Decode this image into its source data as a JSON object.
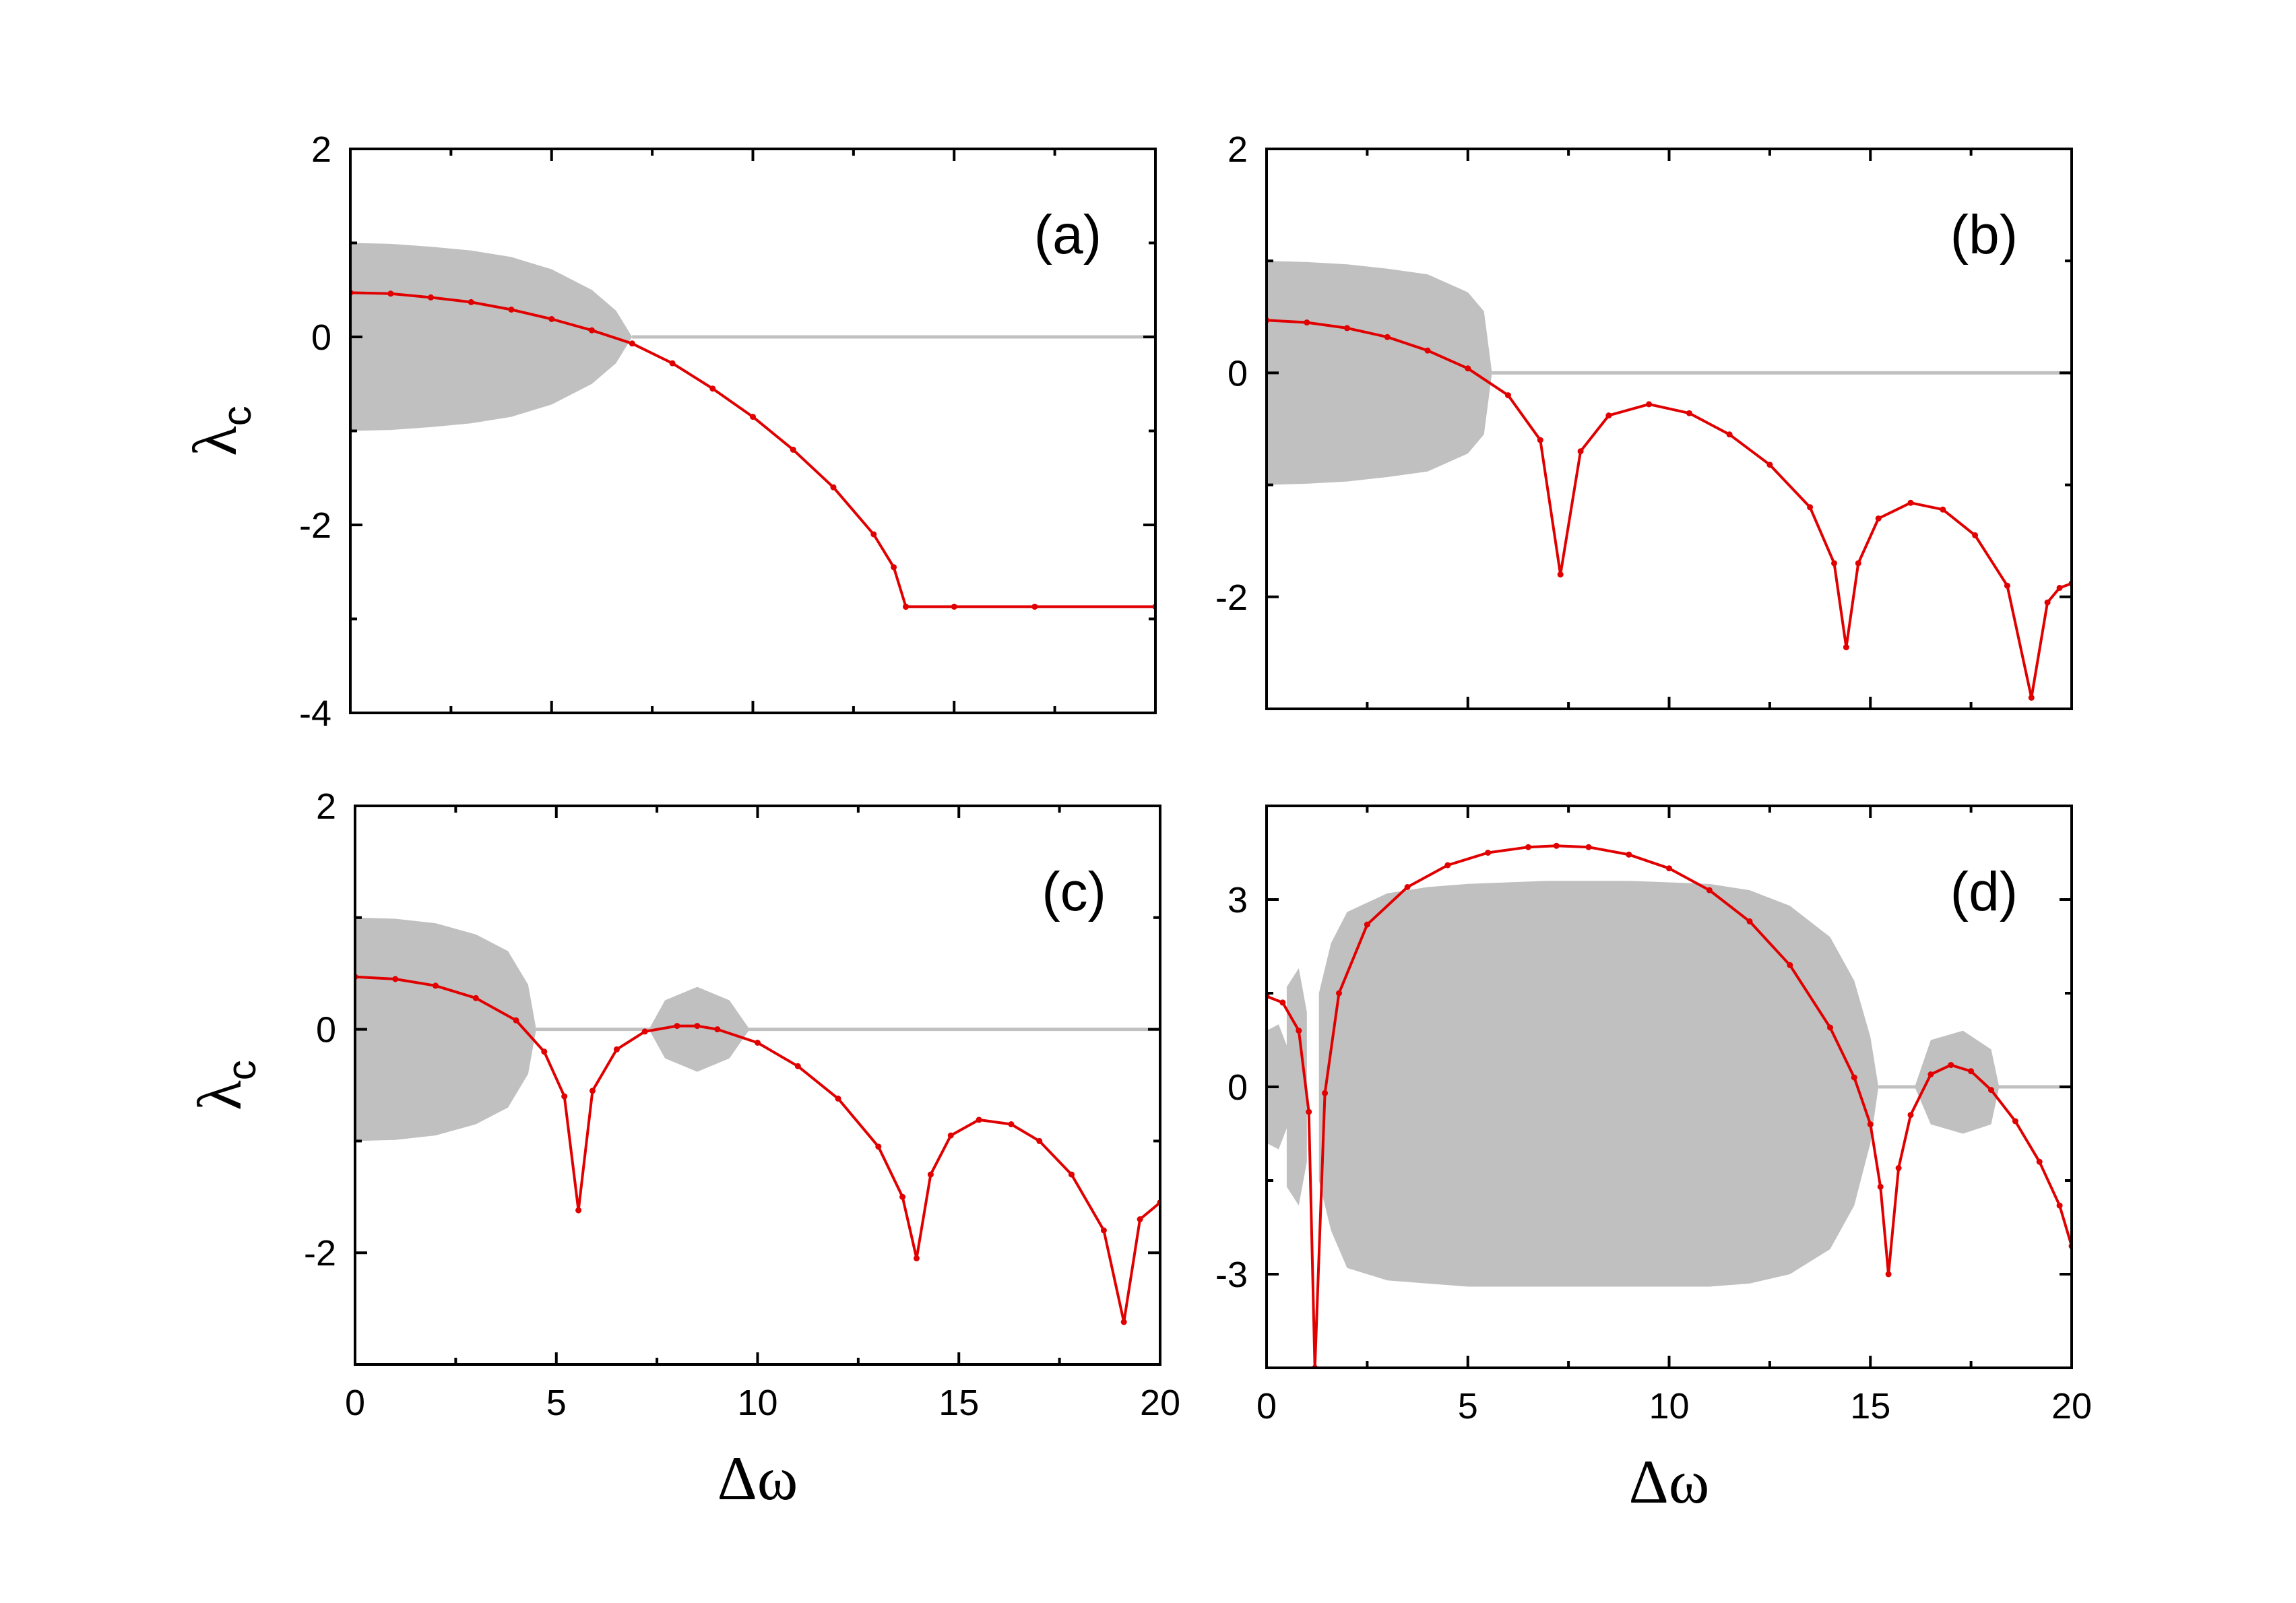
{
  "colors": {
    "curve": "#e00000",
    "band": "#c0c0c0",
    "baseline": "#c0c0c0",
    "axis": "#000000"
  },
  "chart_data": [
    {
      "type": "line",
      "panel": "(a)",
      "x_range": [
        0,
        20
      ],
      "ylim": [
        -4,
        2
      ],
      "xticks": [
        0,
        5,
        10,
        15,
        20
      ],
      "yticks": [
        2,
        0,
        -2,
        -4
      ],
      "ytick_labels": [
        "2",
        "0",
        "-2",
        "-4"
      ],
      "show_xtick_labels": false,
      "ylabel": "λ",
      "ylabel_sub": "c",
      "xlabel": "",
      "label_position": "top-right",
      "band_series": [
        {
          "x": [
            0,
            1,
            2,
            3,
            4,
            5,
            6,
            6.6,
            7.0
          ],
          "upper": [
            1.0,
            0.99,
            0.96,
            0.92,
            0.85,
            0.72,
            0.5,
            0.28,
            0.0
          ],
          "lower": [
            -1.0,
            -0.99,
            -0.96,
            -0.92,
            -0.85,
            -0.72,
            -0.5,
            -0.28,
            0.0
          ]
        }
      ],
      "baseline": {
        "y": 0,
        "x_start": 7.0,
        "x_end": 20
      },
      "series": [
        {
          "name": "λc",
          "x": [
            0,
            1,
            2,
            3,
            4,
            5,
            6,
            7,
            8,
            9,
            10,
            11,
            12,
            13,
            13.5,
            13.8,
            13.8,
            15,
            17,
            20
          ],
          "y": [
            0.47,
            0.46,
            0.42,
            0.37,
            0.29,
            0.19,
            0.07,
            -0.07,
            -0.28,
            -0.55,
            -0.85,
            -1.2,
            -1.6,
            -2.1,
            -2.45,
            -2.87,
            -2.87,
            -2.87,
            -2.87,
            -2.87
          ]
        }
      ],
      "dips": []
    },
    {
      "type": "line",
      "panel": "(b)",
      "x_range": [
        0,
        20
      ],
      "ylim": [
        -3,
        2
      ],
      "xticks": [
        0,
        5,
        10,
        15,
        20
      ],
      "yticks": [
        2,
        0,
        -2
      ],
      "ytick_labels": [
        "2",
        "0",
        "-2"
      ],
      "show_xtick_labels": false,
      "ylabel": "",
      "ylabel_sub": "",
      "xlabel": "",
      "label_position": "top-right",
      "band_series": [
        {
          "x": [
            0,
            1,
            2,
            3,
            4,
            5,
            5.4,
            5.6
          ],
          "upper": [
            1.0,
            0.99,
            0.97,
            0.93,
            0.88,
            0.72,
            0.55,
            0.0
          ],
          "lower": [
            -1.0,
            -0.99,
            -0.97,
            -0.93,
            -0.88,
            -0.72,
            -0.55,
            0.0
          ]
        }
      ],
      "baseline": {
        "y": 0,
        "x_start": 5.6,
        "x_end": 20
      },
      "series": [
        {
          "name": "λc",
          "x": [
            0,
            1,
            2,
            3,
            4,
            5,
            6,
            6.8,
            7.3,
            7.8,
            8.5,
            9.5,
            10.5,
            11.5,
            12.5,
            13.5,
            14.1,
            14.4,
            14.7,
            15.2,
            16,
            16.8,
            17.6,
            18.4,
            19.0,
            19.4,
            19.7,
            20
          ],
          "y": [
            0.47,
            0.45,
            0.4,
            0.32,
            0.2,
            0.04,
            -0.2,
            -0.6,
            -1.8,
            -0.7,
            -0.38,
            -0.28,
            -0.36,
            -0.55,
            -0.82,
            -1.2,
            -1.7,
            -2.45,
            -1.7,
            -1.3,
            -1.16,
            -1.22,
            -1.45,
            -1.9,
            -2.9,
            -2.05,
            -1.92,
            -1.88
          ]
        }
      ],
      "dips": [
        7.3,
        14.4,
        19.0
      ]
    },
    {
      "type": "line",
      "panel": "(c)",
      "x_range": [
        0,
        20
      ],
      "ylim": [
        -3,
        2
      ],
      "xticks": [
        0,
        5,
        10,
        15,
        20
      ],
      "yticks": [
        2,
        0,
        -2
      ],
      "ytick_labels": [
        "2",
        "0",
        "-2"
      ],
      "show_xtick_labels": true,
      "xtick_labels": [
        "0",
        "5",
        "10",
        "15",
        "20"
      ],
      "ylabel": "λ",
      "ylabel_sub": "c",
      "xlabel": "Δω",
      "label_position": "top-right",
      "band_series": [
        {
          "x": [
            0,
            1,
            2,
            3,
            3.8,
            4.3,
            4.5
          ],
          "upper": [
            1.0,
            0.99,
            0.95,
            0.85,
            0.7,
            0.4,
            0.0
          ],
          "lower": [
            -1.0,
            -0.99,
            -0.95,
            -0.85,
            -0.7,
            -0.4,
            0.0
          ]
        },
        {
          "x": [
            7.3,
            7.7,
            8.5,
            9.3,
            9.8
          ],
          "upper": [
            0.0,
            0.26,
            0.38,
            0.26,
            0.0
          ],
          "lower": [
            0.0,
            -0.26,
            -0.38,
            -0.26,
            0.0
          ]
        }
      ],
      "baseline": {
        "y": 0,
        "x_start": 4.5,
        "x_end": 20
      },
      "series": [
        {
          "name": "λc",
          "x": [
            0,
            1,
            2,
            3,
            4,
            4.7,
            5.2,
            5.55,
            5.9,
            6.5,
            7.2,
            8.0,
            8.5,
            9.0,
            10,
            11,
            12,
            13,
            13.6,
            13.95,
            14.3,
            14.8,
            15.5,
            16.3,
            17,
            17.8,
            18.6,
            19.1,
            19.5,
            20
          ],
          "y": [
            0.47,
            0.45,
            0.39,
            0.28,
            0.08,
            -0.2,
            -0.6,
            -1.62,
            -0.55,
            -0.18,
            -0.02,
            0.03,
            0.03,
            0.0,
            -0.12,
            -0.33,
            -0.62,
            -1.05,
            -1.5,
            -2.05,
            -1.3,
            -0.95,
            -0.81,
            -0.85,
            -1.0,
            -1.3,
            -1.8,
            -2.62,
            -1.7,
            -1.55
          ]
        }
      ],
      "dips": [
        5.55,
        13.95,
        19.1
      ]
    },
    {
      "type": "line",
      "panel": "(d)",
      "x_range": [
        0,
        20
      ],
      "ylim": [
        -4.5,
        4.5
      ],
      "xticks": [
        0,
        5,
        10,
        15,
        20
      ],
      "yticks": [
        3,
        0,
        -3
      ],
      "ytick_labels": [
        "3",
        "0",
        "-3"
      ],
      "show_xtick_labels": true,
      "xtick_labels": [
        "0",
        "5",
        "10",
        "15",
        "20"
      ],
      "ylabel": "",
      "ylabel_sub": "",
      "xlabel": "Δω",
      "label_position": "top-right",
      "band_series": [
        {
          "x": [
            0,
            0.3,
            0.6,
            0.9
          ],
          "upper": [
            0.9,
            1.0,
            0.5,
            0.0
          ],
          "lower": [
            -0.9,
            -1.0,
            -0.5,
            0.0
          ]
        },
        {
          "x": [
            0.5,
            0.8,
            1.0
          ],
          "upper": [
            1.6,
            1.9,
            1.2
          ],
          "lower": [
            -1.6,
            -1.9,
            -1.2
          ]
        },
        {
          "x": [
            1.3,
            1.6,
            2.0,
            3,
            4,
            5,
            7,
            9,
            11,
            12,
            13,
            14,
            14.6,
            15.0,
            15.2
          ],
          "upper": [
            1.5,
            2.3,
            2.8,
            3.1,
            3.2,
            3.25,
            3.3,
            3.3,
            3.25,
            3.15,
            2.9,
            2.4,
            1.7,
            0.8,
            0.0
          ],
          "lower": [
            -1.5,
            -2.3,
            -2.9,
            -3.1,
            -3.15,
            -3.2,
            -3.2,
            -3.2,
            -3.2,
            -3.15,
            -3.0,
            -2.6,
            -1.9,
            -0.9,
            0.0
          ]
        },
        {
          "x": [
            16.1,
            16.5,
            17.3,
            18.0,
            18.2
          ],
          "upper": [
            0.0,
            0.75,
            0.9,
            0.6,
            0.0
          ],
          "lower": [
            0.0,
            -0.6,
            -0.75,
            -0.6,
            0.0
          ]
        }
      ],
      "baseline": {
        "y": 0,
        "x_start": 15.2,
        "x_end": 20
      },
      "series": [
        {
          "name": "λc",
          "x": [
            0,
            0.4,
            0.8,
            1.05,
            1.2,
            1.45,
            1.8,
            2.5,
            3.5,
            4.5,
            5.5,
            6.5,
            7.2,
            8,
            9,
            10,
            11,
            12,
            13,
            14,
            14.6,
            15.0,
            15.25,
            15.45,
            15.7,
            16.0,
            16.5,
            17.0,
            17.5,
            18.0,
            18.6,
            19.2,
            19.7,
            20
          ],
          "y": [
            1.45,
            1.35,
            0.9,
            -0.4,
            -4.5,
            -0.1,
            1.5,
            2.6,
            3.2,
            3.55,
            3.75,
            3.84,
            3.86,
            3.84,
            3.72,
            3.5,
            3.15,
            2.65,
            1.95,
            0.95,
            0.15,
            -0.6,
            -1.6,
            -3.0,
            -1.3,
            -0.45,
            0.2,
            0.35,
            0.25,
            -0.05,
            -0.55,
            -1.2,
            -1.9,
            -2.55
          ]
        }
      ],
      "dips": [
        1.2,
        15.45
      ]
    }
  ]
}
